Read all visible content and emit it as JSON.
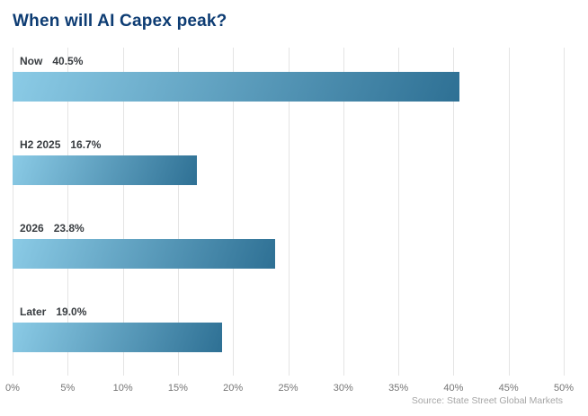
{
  "chart_data": {
    "type": "bar",
    "orientation": "horizontal",
    "title": "When will AI Capex peak?",
    "categories": [
      "Now",
      "H2 2025",
      "2026",
      "Later"
    ],
    "values": [
      40.5,
      16.7,
      23.8,
      19.0
    ],
    "value_labels": [
      "40.5%",
      "16.7%",
      "23.8%",
      "19.0%"
    ],
    "xlabel": "",
    "ylabel": "",
    "xlim": [
      0,
      50
    ],
    "x_ticks": [
      "0%",
      "5%",
      "10%",
      "15%",
      "20%",
      "25%",
      "30%",
      "35%",
      "40%",
      "45%",
      "50%"
    ],
    "grid": "vertical",
    "legend": "none",
    "bar_gradient_start": "#8BCBE6",
    "bar_gradient_end": "#2E7094"
  },
  "source": "Source: State Street Global Markets",
  "colors": {
    "title": "#0D3C73",
    "label": "#383C40",
    "tick": "#757575",
    "source": "#A6A6A6",
    "gridline": "#E4E4E4",
    "background": "#FFFFFF"
  }
}
